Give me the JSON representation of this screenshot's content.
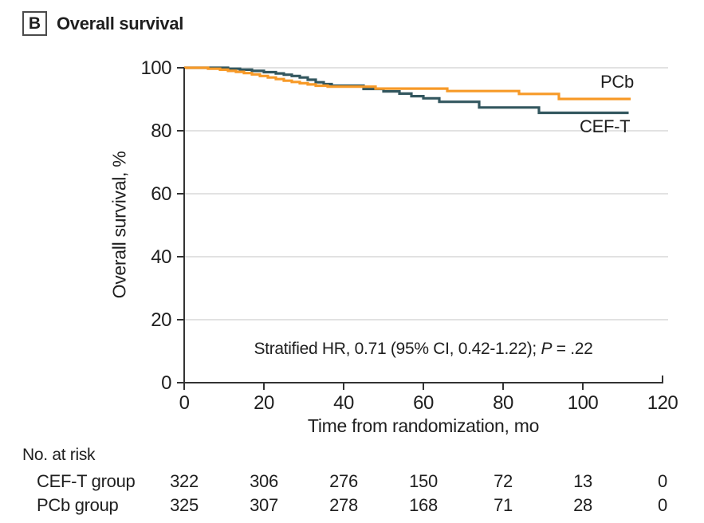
{
  "header": {
    "panel_label": "B",
    "title": "Overall survival"
  },
  "chart_data": {
    "type": "line",
    "subtype": "kaplan-meier-step",
    "title": "Overall survival",
    "xlabel": "Time from randomization, mo",
    "ylabel": "Overall survival, %",
    "xlim": [
      0,
      120
    ],
    "ylim": [
      0,
      100
    ],
    "xticks": [
      0,
      20,
      40,
      60,
      80,
      100,
      120
    ],
    "yticks": [
      0,
      20,
      40,
      60,
      80,
      100
    ],
    "grid": "horizontal",
    "legend_position": "inline-right",
    "annotation": {
      "text": "Stratified HR, 0.71 (95% CI, 0.42-1.22); ",
      "p_label": "P",
      "p_value": " = .22"
    },
    "series": [
      {
        "name": "CEF-T",
        "color": "#33575F",
        "points": [
          [
            0,
            100
          ],
          [
            11,
            100
          ],
          [
            11,
            99.7
          ],
          [
            14,
            99.7
          ],
          [
            14,
            99.4
          ],
          [
            17,
            99.4
          ],
          [
            17,
            99
          ],
          [
            20,
            99
          ],
          [
            20,
            98.6
          ],
          [
            23,
            98.6
          ],
          [
            23,
            98.2
          ],
          [
            25,
            98.2
          ],
          [
            25,
            97.8
          ],
          [
            27,
            97.8
          ],
          [
            27,
            97.4
          ],
          [
            29,
            97.4
          ],
          [
            29,
            96.9
          ],
          [
            31,
            96.9
          ],
          [
            31,
            96.2
          ],
          [
            33,
            96.2
          ],
          [
            33,
            95.4
          ],
          [
            35,
            95.4
          ],
          [
            35,
            94.8
          ],
          [
            37,
            94.8
          ],
          [
            37,
            94.3
          ],
          [
            45,
            94.3
          ],
          [
            45,
            93.3
          ],
          [
            50,
            93.3
          ],
          [
            50,
            92.5
          ],
          [
            54,
            92.5
          ],
          [
            54,
            91.8
          ],
          [
            57,
            91.8
          ],
          [
            57,
            91
          ],
          [
            60,
            91
          ],
          [
            60,
            90.3
          ],
          [
            64,
            90.3
          ],
          [
            64,
            89.2
          ],
          [
            74,
            89.2
          ],
          [
            74,
            87.4
          ],
          [
            89,
            87.4
          ],
          [
            89,
            85.7
          ],
          [
            111.5,
            85.7
          ]
        ]
      },
      {
        "name": "PCb",
        "color": "#F79A28",
        "points": [
          [
            0,
            100
          ],
          [
            6,
            100
          ],
          [
            6,
            99.7
          ],
          [
            9,
            99.7
          ],
          [
            9,
            99.4
          ],
          [
            11,
            99.4
          ],
          [
            11,
            99
          ],
          [
            13,
            99
          ],
          [
            13,
            98.7
          ],
          [
            15,
            98.7
          ],
          [
            15,
            98.3
          ],
          [
            17,
            98.3
          ],
          [
            17,
            97.9
          ],
          [
            19,
            97.9
          ],
          [
            19,
            97.4
          ],
          [
            21,
            97.4
          ],
          [
            21,
            96.9
          ],
          [
            23,
            96.9
          ],
          [
            23,
            96.4
          ],
          [
            25,
            96.4
          ],
          [
            25,
            95.9
          ],
          [
            27,
            95.9
          ],
          [
            27,
            95.5
          ],
          [
            29,
            95.5
          ],
          [
            29,
            95.1
          ],
          [
            31,
            95.1
          ],
          [
            31,
            94.7
          ],
          [
            33,
            94.7
          ],
          [
            33,
            94.3
          ],
          [
            36,
            94.3
          ],
          [
            36,
            94
          ],
          [
            48,
            94
          ],
          [
            48,
            93.4
          ],
          [
            66,
            93.4
          ],
          [
            66,
            92.6
          ],
          [
            84,
            92.6
          ],
          [
            84,
            91.7
          ],
          [
            94,
            91.7
          ],
          [
            94,
            90.1
          ],
          [
            112,
            90.1
          ]
        ]
      }
    ],
    "styles": {
      "grid_color": "#D9D9D9",
      "axis_color": "#333333",
      "text_color": "#1f1f1f",
      "line_width": 3.2
    }
  },
  "risk_table": {
    "title": "No. at risk",
    "timepoints": [
      0,
      20,
      40,
      60,
      80,
      100,
      120
    ],
    "rows": [
      {
        "label": "CEF-T group",
        "values": [
          322,
          306,
          276,
          150,
          72,
          13,
          0
        ]
      },
      {
        "label": "PCb group",
        "values": [
          325,
          307,
          278,
          168,
          71,
          28,
          0
        ]
      }
    ]
  }
}
